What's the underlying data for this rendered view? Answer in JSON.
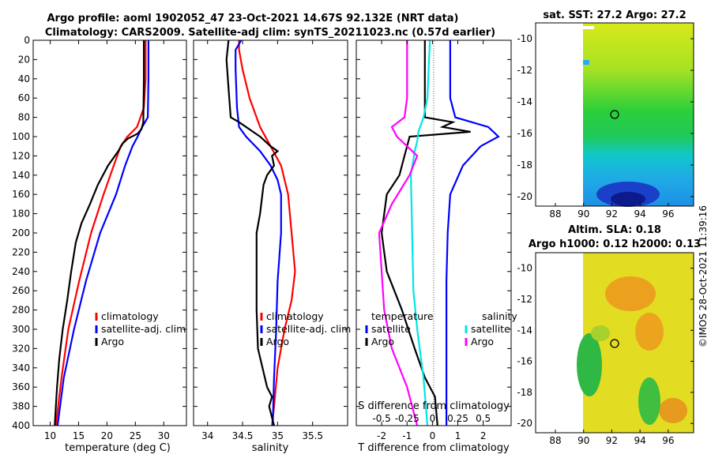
{
  "header": {
    "title_line1": "Argo profile: aoml 1902052_47 23-Oct-2021 14.67S 92.132E (NRT data)",
    "title_line2": "Climatology: CARS2009. Satellite-adj clim: synTS_20211023.nc (0.57d earlier)",
    "watermark": "©IMOS 28-Oct-2021 11:39:16"
  },
  "colors": {
    "climatology": "#ff0000",
    "satellite": "#0000ff",
    "argo": "#000000",
    "sat_salinity": "#00e5e5",
    "argo_salinity": "#ff00ff",
    "zero_line": "#555555"
  },
  "chart_data": [
    {
      "type": "line",
      "name": "temperature-profile",
      "xlabel": "temperature (deg C)",
      "xlim": [
        7,
        34
      ],
      "xticks": [
        10,
        15,
        20,
        25,
        30
      ],
      "ylim": [
        400,
        0
      ],
      "yticks": [
        0,
        20,
        40,
        60,
        80,
        100,
        120,
        140,
        160,
        180,
        200,
        220,
        240,
        260,
        280,
        300,
        320,
        340,
        360,
        380,
        400
      ],
      "legend": [
        "climatology",
        "satellite-adj. clim",
        "Argo"
      ],
      "series": [
        {
          "name": "climatology",
          "color": "#ff0000",
          "depth": [
            0,
            40,
            70,
            90,
            100,
            110,
            130,
            160,
            200,
            250,
            300,
            350,
            400
          ],
          "values": [
            26.8,
            26.8,
            26.5,
            25.3,
            23.6,
            22.4,
            21.2,
            19.4,
            17.2,
            15.1,
            13.2,
            12.0,
            11.0
          ]
        },
        {
          "name": "satellite-adj. clim",
          "color": "#0000ff",
          "depth": [
            0,
            40,
            80,
            90,
            100,
            110,
            130,
            160,
            200,
            250,
            300,
            350,
            400
          ],
          "values": [
            27.3,
            27.3,
            27.2,
            26.2,
            25.4,
            24.5,
            23.2,
            21.6,
            18.8,
            16.3,
            14.2,
            12.4,
            11.3
          ]
        },
        {
          "name": "Argo",
          "color": "#000000",
          "depth": [
            0,
            40,
            85,
            92,
            97,
            102,
            107,
            115,
            130,
            150,
            170,
            190,
            210,
            240,
            270,
            300,
            330,
            360,
            380,
            400
          ],
          "values": [
            26.5,
            26.5,
            26.4,
            26.1,
            25.4,
            23.7,
            22.8,
            22.0,
            20.2,
            18.4,
            17.0,
            15.5,
            14.5,
            13.7,
            13.0,
            12.2,
            11.6,
            11.2,
            11.0,
            10.8
          ]
        }
      ]
    },
    {
      "type": "line",
      "name": "salinity-profile",
      "xlabel": "salinity",
      "xlim": [
        33.8,
        36.0
      ],
      "xticks": [
        34,
        34.5,
        35,
        35.5
      ],
      "ylim": [
        400,
        0
      ],
      "legend": [
        "climatology",
        "satellite-adj. clim",
        "Argo"
      ],
      "series": [
        {
          "name": "climatology",
          "color": "#ff0000",
          "depth": [
            0,
            10,
            30,
            60,
            90,
            110,
            130,
            160,
            200,
            240,
            270,
            300,
            340,
            380,
            400
          ],
          "values": [
            34.45,
            34.45,
            34.5,
            34.6,
            34.75,
            34.9,
            35.05,
            35.15,
            35.2,
            35.25,
            35.2,
            35.1,
            35.0,
            34.95,
            34.92
          ]
        },
        {
          "name": "satellite-adj. clim",
          "color": "#0000ff",
          "depth": [
            0,
            10,
            30,
            70,
            90,
            100,
            115,
            130,
            145,
            160,
            200,
            250,
            300,
            350,
            400
          ],
          "values": [
            34.48,
            34.4,
            34.4,
            34.42,
            34.45,
            34.55,
            34.75,
            34.9,
            35.0,
            35.05,
            35.05,
            35.0,
            34.98,
            34.95,
            34.93
          ]
        },
        {
          "name": "Argo",
          "color": "#000000",
          "depth": [
            0,
            20,
            50,
            80,
            85,
            90,
            95,
            100,
            110,
            115,
            120,
            130,
            140,
            150,
            180,
            200,
            240,
            280,
            320,
            360,
            370,
            380,
            400
          ],
          "values": [
            34.3,
            34.27,
            34.3,
            34.33,
            34.45,
            34.55,
            34.65,
            34.75,
            34.9,
            35.0,
            34.92,
            34.95,
            34.85,
            34.8,
            34.75,
            34.7,
            34.7,
            34.7,
            34.72,
            34.85,
            34.92,
            34.88,
            34.95
          ]
        }
      ]
    },
    {
      "type": "line",
      "name": "difference-profile",
      "xlabel": "T difference from climatology",
      "xlim": [
        -3.0,
        3.1
      ],
      "xticks": [
        -2,
        -1,
        0,
        1,
        2
      ],
      "top_axis": {
        "label": "S difference from climatology",
        "ticks": [
          -0.5,
          -0.25,
          0,
          0.25,
          0.5
        ],
        "tick_labels": [
          "-0.5",
          "-0.25",
          "0",
          "0.25",
          "0.5"
        ],
        "scale": 4
      },
      "ylim": [
        400,
        0
      ],
      "legend_left": {
        "title": "temperature",
        "entries": [
          "satellite",
          "Argo"
        ]
      },
      "legend_right": {
        "title": "salinity",
        "entries": [
          "satellite",
          "Argo"
        ]
      },
      "series": [
        {
          "name": "temperature satellite",
          "color": "#0000ff",
          "depth": [
            0,
            20,
            60,
            80,
            90,
            100,
            110,
            130,
            160,
            200,
            250,
            300,
            350,
            400
          ],
          "values": [
            0.7,
            0.7,
            0.7,
            0.9,
            2.2,
            2.6,
            1.9,
            1.2,
            0.7,
            0.6,
            0.55,
            0.55,
            0.55,
            0.55
          ]
        },
        {
          "name": "temperature Argo",
          "color": "#000000",
          "depth": [
            0,
            80,
            85,
            90,
            95,
            100,
            110,
            120,
            140,
            160,
            200,
            240,
            280,
            320,
            350,
            370,
            400
          ],
          "values": [
            -0.3,
            -0.3,
            0.8,
            0.4,
            1.5,
            -0.9,
            -1.0,
            -1.1,
            -1.3,
            -1.8,
            -2.0,
            -1.8,
            -1.2,
            -0.7,
            -0.3,
            0.1,
            0.2
          ]
        },
        {
          "name": "salinity satellite",
          "color": "#00e5e5",
          "depth": [
            0,
            30,
            60,
            80,
            95,
            105,
            115,
            140,
            200,
            260,
            300,
            350,
            400
          ],
          "values": [
            -0.1,
            -0.15,
            -0.2,
            -0.35,
            -0.55,
            -0.6,
            -0.7,
            -0.85,
            -0.8,
            -0.75,
            -0.6,
            -0.35,
            -0.2
          ]
        },
        {
          "name": "salinity Argo",
          "color": "#ff00ff",
          "depth": [
            0,
            30,
            60,
            80,
            90,
            100,
            110,
            120,
            140,
            170,
            200,
            240,
            280,
            320,
            360,
            400
          ],
          "values": [
            -1.0,
            -1.0,
            -1.0,
            -1.1,
            -1.6,
            -1.4,
            -1.0,
            -0.6,
            -0.9,
            -1.6,
            -2.1,
            -2.0,
            -1.9,
            -1.6,
            -1.0,
            -0.6
          ]
        }
      ]
    },
    {
      "type": "heatmap",
      "name": "sst-map",
      "title": "sat. SST: 27.2 Argo: 27.2",
      "xlim": [
        86.6,
        97.8
      ],
      "ylim": [
        -20.6,
        -9.0
      ],
      "xticks": [
        88,
        90,
        92,
        94,
        96
      ],
      "yticks": [
        -10,
        -12,
        -14,
        -16,
        -18,
        -20
      ],
      "argo_position": {
        "lon": 92.13,
        "lat": -14.67
      }
    },
    {
      "type": "heatmap",
      "name": "sla-map",
      "title": "Altim. SLA: 0.18",
      "subtitle": "Argo h1000: 0.12 h2000: 0.13",
      "xlim": [
        86.6,
        97.8
      ],
      "ylim": [
        -20.6,
        -9.0
      ],
      "xticks": [
        88,
        90,
        92,
        94,
        96
      ],
      "yticks": [
        -10,
        -12,
        -14,
        -16,
        -18,
        -20
      ],
      "argo_position": {
        "lon": 92.13,
        "lat": -14.67
      }
    }
  ]
}
